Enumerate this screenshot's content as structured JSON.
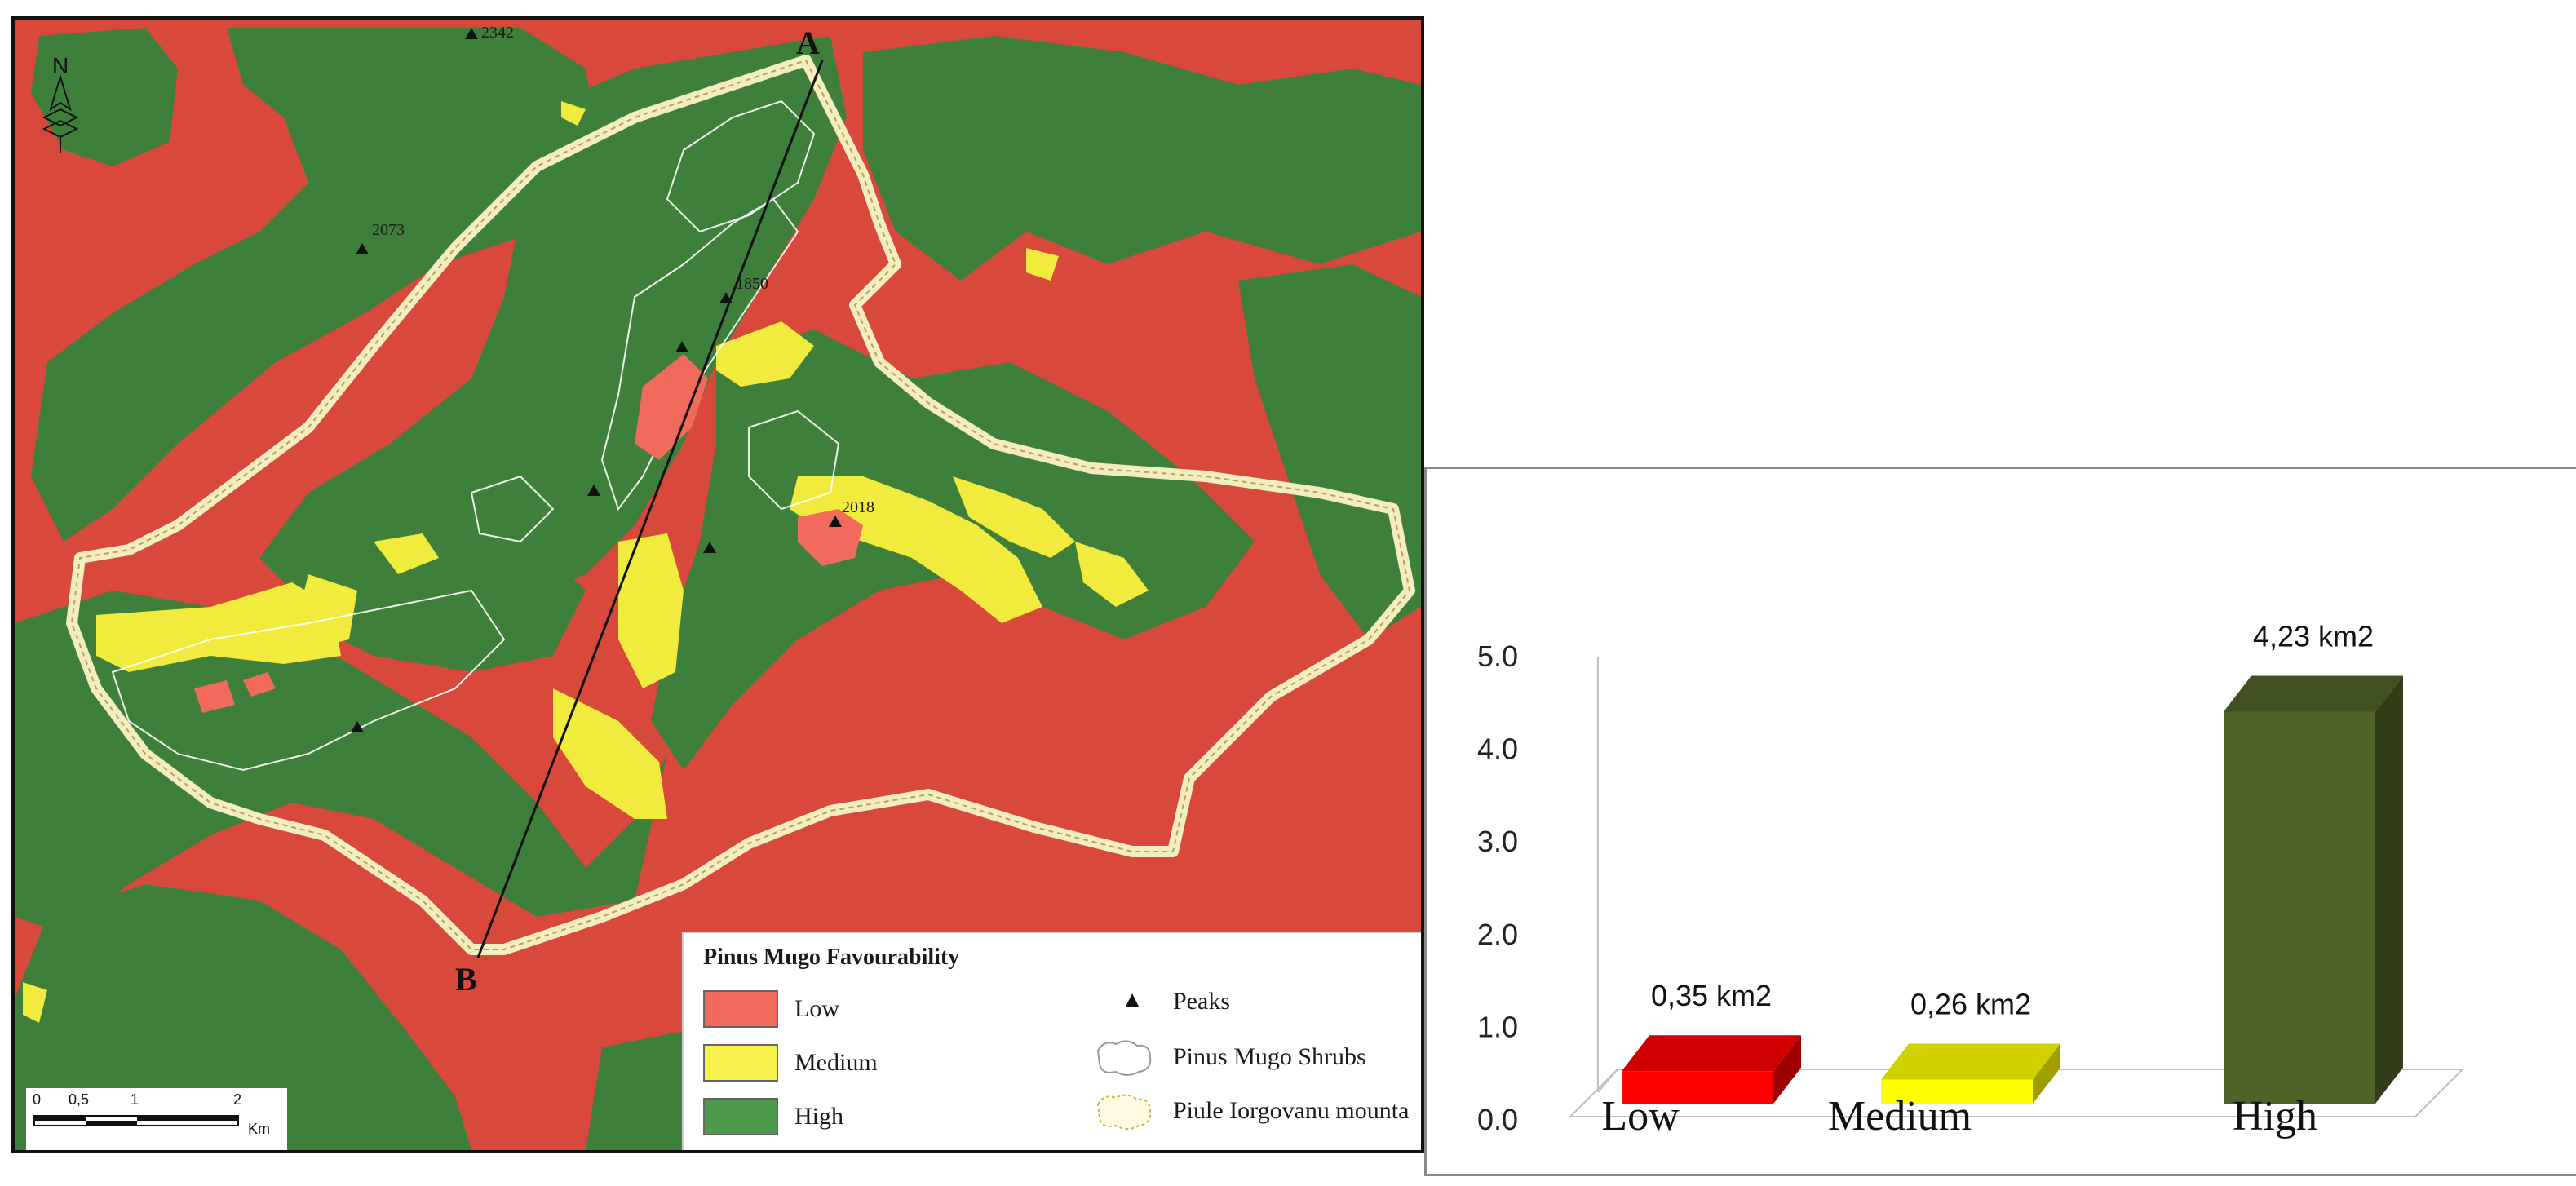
{
  "map": {
    "point_a": "A",
    "point_b": "B",
    "peaks": [
      {
        "label": "2342"
      },
      {
        "label": "2073"
      },
      {
        "label": "2018"
      },
      {
        "label": "1850"
      }
    ],
    "north_label": "N",
    "legend": {
      "title": "Pinus Mugo Favourability",
      "classes": [
        {
          "label": "Low",
          "color": "#f26a5b"
        },
        {
          "label": "Medium",
          "color": "#f6f24a"
        },
        {
          "label": "High",
          "color": "#4e9a4c"
        }
      ],
      "symbols": [
        {
          "label": "Peaks",
          "icon": "triangle-icon"
        },
        {
          "label": "Pinus Mugo Shrubs",
          "icon": "shrub-outline-icon"
        },
        {
          "label": "Piule Iorgovanu mounta",
          "icon": "boundary-outline-icon"
        }
      ]
    },
    "scale": {
      "ticks": [
        "0",
        "0,5",
        "1",
        "2"
      ],
      "unit": "Km"
    },
    "colors": {
      "low": "#d9493b",
      "medium": "#f0eb3c",
      "high": "#3f7f3c",
      "boundary": "#f3eec2"
    }
  },
  "chart_data": {
    "type": "bar",
    "categories": [
      "Low",
      "Medium",
      "High"
    ],
    "values": [
      0.35,
      0.26,
      4.23
    ],
    "data_labels": [
      "0,35 km2",
      "0,26 km2",
      "4,23 km2"
    ],
    "yticks": [
      "0.0",
      "1.0",
      "2.0",
      "3.0",
      "4.0",
      "5.0"
    ],
    "ylim": [
      0,
      5
    ],
    "title": "",
    "xlabel": "",
    "ylabel": "",
    "colors": [
      "#ff0000",
      "#ffff00",
      "#4f6228"
    ],
    "style": "3d"
  }
}
